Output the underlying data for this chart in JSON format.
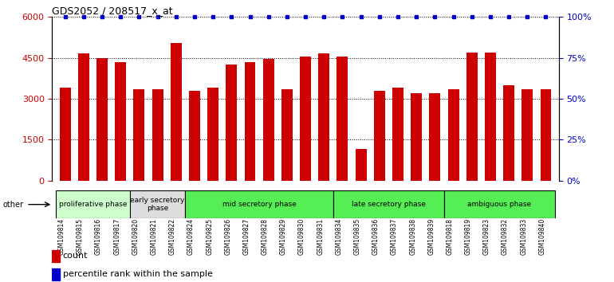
{
  "title": "GDS2052 / 208517_x_at",
  "samples": [
    "GSM109814",
    "GSM109815",
    "GSM109816",
    "GSM109817",
    "GSM109820",
    "GSM109821",
    "GSM109822",
    "GSM109824",
    "GSM109825",
    "GSM109826",
    "GSM109827",
    "GSM109828",
    "GSM109829",
    "GSM109830",
    "GSM109831",
    "GSM109834",
    "GSM109835",
    "GSM109836",
    "GSM109837",
    "GSM109838",
    "GSM109839",
    "GSM109818",
    "GSM109819",
    "GSM109823",
    "GSM109832",
    "GSM109833",
    "GSM109840"
  ],
  "counts": [
    3400,
    4650,
    4500,
    4350,
    3350,
    3350,
    5050,
    3300,
    3400,
    4250,
    4350,
    4450,
    3350,
    4550,
    4650,
    4550,
    1150,
    3300,
    3400,
    3200,
    3200,
    3350,
    4700,
    4700,
    3500,
    3350,
    3350
  ],
  "percentile": 100,
  "ylim_left": [
    0,
    6000
  ],
  "ylim_right": [
    0,
    100
  ],
  "yticks_left": [
    0,
    1500,
    3000,
    4500,
    6000
  ],
  "yticks_right": [
    0,
    25,
    50,
    75,
    100
  ],
  "bar_color": "#cc0000",
  "dot_color": "#0000cc",
  "phases": [
    {
      "label": "proliferative phase",
      "start": 0,
      "end": 4,
      "color": "#ccffcc"
    },
    {
      "label": "early secretory\nphase",
      "start": 4,
      "end": 7,
      "color": "#dddddd"
    },
    {
      "label": "mid secretory phase",
      "start": 7,
      "end": 15,
      "color": "#55ee55"
    },
    {
      "label": "late secretory phase",
      "start": 15,
      "end": 21,
      "color": "#55ee55"
    },
    {
      "label": "ambiguous phase",
      "start": 21,
      "end": 27,
      "color": "#55ee55"
    }
  ],
  "other_label": "other",
  "legend_count_label": "count",
  "legend_pct_label": "percentile rank within the sample",
  "bg_color": "#ffffff",
  "plot_bg": "#ffffff",
  "tick_label_color_left": "#cc0000",
  "tick_label_color_right": "#0000cc",
  "title_color": "#000000"
}
